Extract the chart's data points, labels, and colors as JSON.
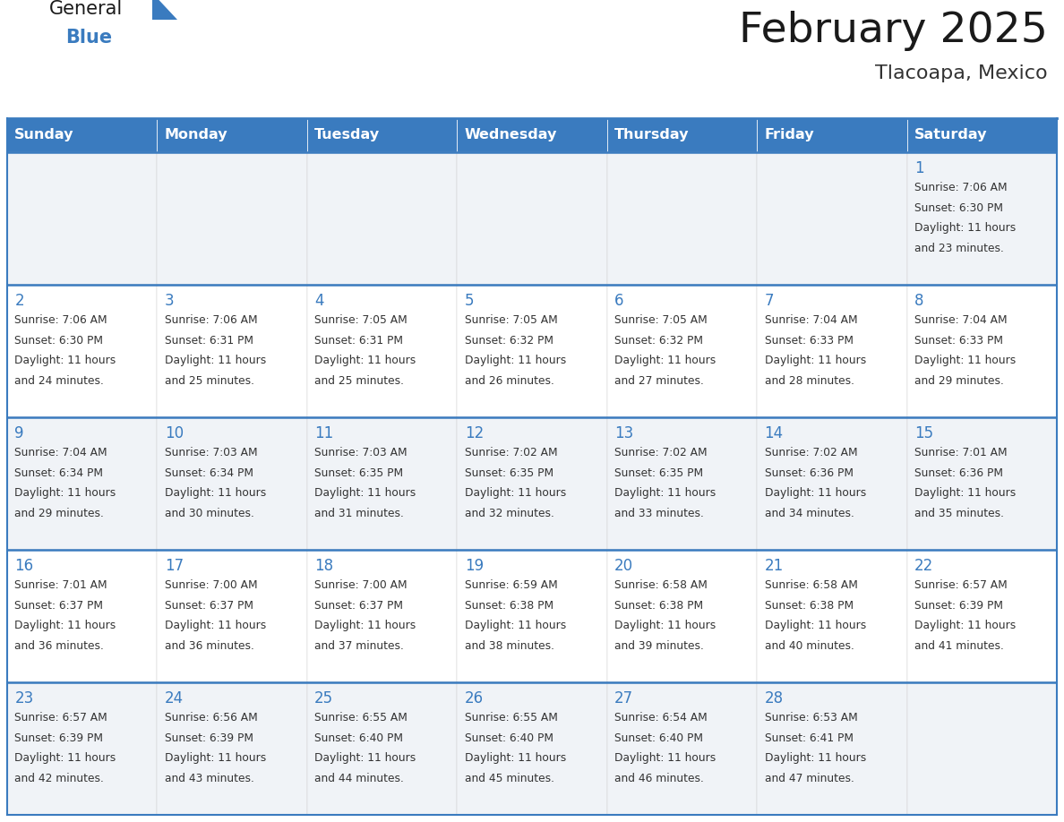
{
  "title": "February 2025",
  "subtitle": "Tlacoapa, Mexico",
  "days_of_week": [
    "Sunday",
    "Monday",
    "Tuesday",
    "Wednesday",
    "Thursday",
    "Friday",
    "Saturday"
  ],
  "header_bg": "#3a7bbf",
  "header_text": "#ffffff",
  "cell_bg_odd": "#f0f3f7",
  "cell_bg_even": "#ffffff",
  "row_border_color": "#3a7bbf",
  "col_border_color": "#cccccc",
  "day_num_color": "#3a7bbf",
  "text_color": "#333333",
  "calendar_data": [
    [
      null,
      null,
      null,
      null,
      null,
      null,
      1
    ],
    [
      2,
      3,
      4,
      5,
      6,
      7,
      8
    ],
    [
      9,
      10,
      11,
      12,
      13,
      14,
      15
    ],
    [
      16,
      17,
      18,
      19,
      20,
      21,
      22
    ],
    [
      23,
      24,
      25,
      26,
      27,
      28,
      null
    ]
  ],
  "sunrise_data": {
    "1": "7:06 AM",
    "2": "7:06 AM",
    "3": "7:06 AM",
    "4": "7:05 AM",
    "5": "7:05 AM",
    "6": "7:05 AM",
    "7": "7:04 AM",
    "8": "7:04 AM",
    "9": "7:04 AM",
    "10": "7:03 AM",
    "11": "7:03 AM",
    "12": "7:02 AM",
    "13": "7:02 AM",
    "14": "7:02 AM",
    "15": "7:01 AM",
    "16": "7:01 AM",
    "17": "7:00 AM",
    "18": "7:00 AM",
    "19": "6:59 AM",
    "20": "6:58 AM",
    "21": "6:58 AM",
    "22": "6:57 AM",
    "23": "6:57 AM",
    "24": "6:56 AM",
    "25": "6:55 AM",
    "26": "6:55 AM",
    "27": "6:54 AM",
    "28": "6:53 AM"
  },
  "sunset_data": {
    "1": "6:30 PM",
    "2": "6:30 PM",
    "3": "6:31 PM",
    "4": "6:31 PM",
    "5": "6:32 PM",
    "6": "6:32 PM",
    "7": "6:33 PM",
    "8": "6:33 PM",
    "9": "6:34 PM",
    "10": "6:34 PM",
    "11": "6:35 PM",
    "12": "6:35 PM",
    "13": "6:35 PM",
    "14": "6:36 PM",
    "15": "6:36 PM",
    "16": "6:37 PM",
    "17": "6:37 PM",
    "18": "6:37 PM",
    "19": "6:38 PM",
    "20": "6:38 PM",
    "21": "6:38 PM",
    "22": "6:39 PM",
    "23": "6:39 PM",
    "24": "6:39 PM",
    "25": "6:40 PM",
    "26": "6:40 PM",
    "27": "6:40 PM",
    "28": "6:41 PM"
  },
  "daylight_data": {
    "1": "11 hours and 23 minutes.",
    "2": "11 hours and 24 minutes.",
    "3": "11 hours and 25 minutes.",
    "4": "11 hours and 25 minutes.",
    "5": "11 hours and 26 minutes.",
    "6": "11 hours and 27 minutes.",
    "7": "11 hours and 28 minutes.",
    "8": "11 hours and 29 minutes.",
    "9": "11 hours and 29 minutes.",
    "10": "11 hours and 30 minutes.",
    "11": "11 hours and 31 minutes.",
    "12": "11 hours and 32 minutes.",
    "13": "11 hours and 33 minutes.",
    "14": "11 hours and 34 minutes.",
    "15": "11 hours and 35 minutes.",
    "16": "11 hours and 36 minutes.",
    "17": "11 hours and 36 minutes.",
    "18": "11 hours and 37 minutes.",
    "19": "11 hours and 38 minutes.",
    "20": "11 hours and 39 minutes.",
    "21": "11 hours and 40 minutes.",
    "22": "11 hours and 41 minutes.",
    "23": "11 hours and 42 minutes.",
    "24": "11 hours and 43 minutes.",
    "25": "11 hours and 44 minutes.",
    "26": "11 hours and 45 minutes.",
    "27": "11 hours and 46 minutes.",
    "28": "11 hours and 47 minutes."
  },
  "fig_width": 11.88,
  "fig_height": 9.18,
  "dpi": 100
}
